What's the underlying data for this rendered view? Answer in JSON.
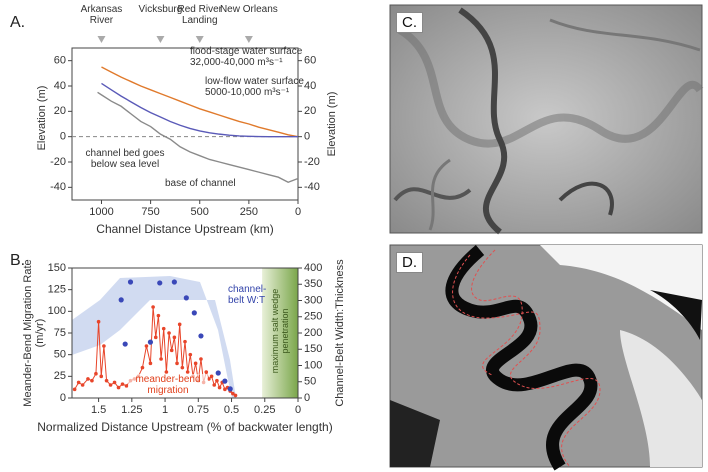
{
  "panels": [
    "A.",
    "B.",
    "C.",
    "D."
  ],
  "chart_data": [
    {
      "type": "line",
      "x_label": "Channel Distance Upstream (km)",
      "y_label": "Elevation (m)",
      "y2_label": "Elevation (m)",
      "x": [
        1020,
        1000,
        950,
        900,
        850,
        800,
        750,
        700,
        650,
        600,
        550,
        500,
        450,
        400,
        350,
        300,
        250,
        200,
        150,
        100,
        50,
        0
      ],
      "series": [
        {
          "name": "flood-stage water surface",
          "color": "#e07a2c",
          "style": "line",
          "values": [
            null,
            55,
            51,
            47,
            43.5,
            40,
            37,
            34,
            31,
            28,
            25,
            22,
            19.5,
            17,
            14.5,
            12,
            10,
            7.5,
            5.5,
            3.5,
            1.5,
            0
          ]
        },
        {
          "name": "low-flow water surface",
          "color": "#5a5ab8",
          "style": "line",
          "values": [
            null,
            42,
            37,
            32,
            27.5,
            23,
            19,
            15.5,
            12,
            9,
            6.5,
            4.5,
            3,
            2,
            1.2,
            0.6,
            0.3,
            0.1,
            0,
            0,
            0,
            0
          ]
        },
        {
          "name": "base of channel",
          "color": "#8a8a8a",
          "style": "line",
          "values": [
            35,
            33,
            28,
            24,
            18,
            12,
            8,
            2,
            -2,
            -8,
            -12,
            -15,
            -18,
            -20,
            -22,
            -24,
            -26,
            -28,
            -30,
            -32,
            -36,
            -33
          ]
        }
      ],
      "xlim": [
        1150,
        0
      ],
      "xticks": [
        1000,
        750,
        500,
        250,
        0
      ],
      "ylim": [
        -50,
        70
      ],
      "yticks": [
        -40,
        -20,
        0,
        20,
        40,
        60
      ],
      "y2lim": [
        -50,
        70
      ],
      "y2ticks": [
        -40,
        -20,
        0,
        20,
        40,
        60
      ],
      "reference_line": 0,
      "locations": [
        {
          "name": "Arkansas River",
          "x": 1000
        },
        {
          "name": "Vicksburg",
          "x": 700
        },
        {
          "name": "Red River Landing",
          "x": 500
        },
        {
          "name": "New Orleans",
          "x": 250
        }
      ],
      "annotations": [
        "flood-stage water surface",
        "32,000-40,000 m³s⁻¹",
        "low-flow water surface",
        "5000-10,000 m³s⁻¹",
        "channel bed goes below sea level",
        "base of channel"
      ]
    },
    {
      "type": "line",
      "x_label": "Normalized Distance Upstream (% of backwater length)",
      "y_label": "Meander-Bend Migration Rate (m/yr)",
      "y2_label": "Channel-Belt Width:Thickness",
      "series": [
        {
          "name": "meander-bend migration",
          "color": "#e8452a",
          "style": "line+markers",
          "x": [
            1.68,
            1.65,
            1.62,
            1.58,
            1.55,
            1.52,
            1.5,
            1.48,
            1.46,
            1.44,
            1.41,
            1.38,
            1.35,
            1.32,
            1.29,
            1.26,
            1.23,
            1.2,
            1.17,
            1.14,
            1.11,
            1.09,
            1.07,
            1.05,
            1.03,
            1.01,
            0.99,
            0.97,
            0.95,
            0.93,
            0.91,
            0.89,
            0.87,
            0.85,
            0.83,
            0.81,
            0.79,
            0.77,
            0.75,
            0.73,
            0.71,
            0.69,
            0.67,
            0.65,
            0.63,
            0.61,
            0.59,
            0.57,
            0.55,
            0.53,
            0.51,
            0.49,
            0.47
          ],
          "values": [
            10,
            18,
            15,
            22,
            20,
            28,
            88,
            25,
            60,
            20,
            15,
            18,
            12,
            16,
            14,
            20,
            22,
            25,
            35,
            60,
            40,
            105,
            70,
            95,
            45,
            80,
            30,
            75,
            55,
            70,
            40,
            85,
            35,
            65,
            30,
            50,
            25,
            40,
            20,
            45,
            18,
            30,
            22,
            25,
            15,
            20,
            12,
            18,
            10,
            12,
            8,
            5,
            3
          ]
        },
        {
          "name": "channel-belt W:T",
          "color": "#3a48b8",
          "style": "markers",
          "axis": "y2",
          "x": [
            1.33,
            1.3,
            1.26,
            1.11,
            1.04,
            0.93,
            0.84,
            0.78,
            0.73,
            0.6,
            0.55,
            0.51
          ],
          "values": [
            302,
            166,
            357,
            172,
            354,
            357,
            308,
            262,
            191,
            77,
            52,
            28
          ]
        }
      ],
      "xlim": [
        1.7,
        0
      ],
      "xticks": [
        1.5,
        1.25,
        1.0,
        0.75,
        0.5,
        0.25,
        0.0
      ],
      "ylim": [
        0,
        150
      ],
      "yticks": [
        0,
        25,
        50,
        75,
        100,
        125,
        150
      ],
      "y2lim": [
        0,
        400
      ],
      "y2ticks": [
        0,
        50,
        100,
        150,
        200,
        250,
        300,
        350,
        400
      ],
      "shaded_xrange": [
        0.27,
        0
      ],
      "shaded_label": "maximum salt wedge penetration",
      "annotations": [
        "channel-belt W:T",
        "meander-bend migration"
      ]
    }
  ]
}
